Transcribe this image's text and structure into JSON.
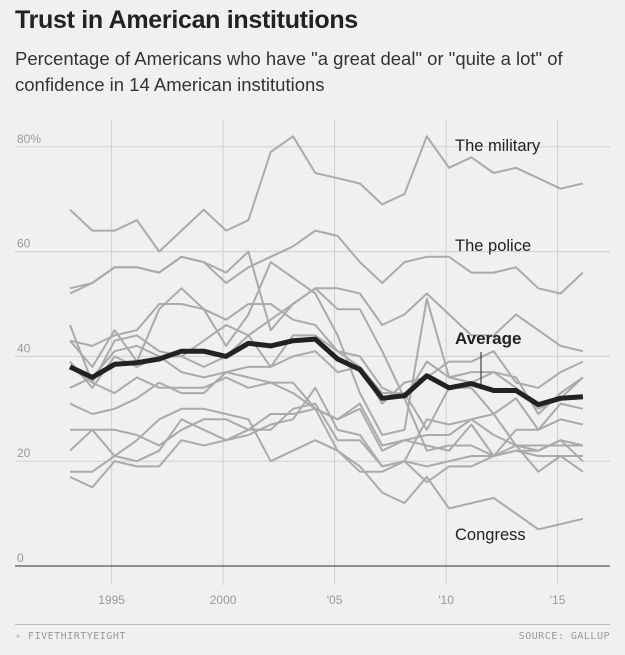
{
  "header": {
    "title": "Trust in American institutions",
    "subtitle": "Percentage of Americans who have \"a great deal\" or \"quite a lot\" of confidence in 14 American institutions"
  },
  "footer": {
    "logo": "FIVETHIRTYEIGHT",
    "source": "SOURCE: GALLUP"
  },
  "chart_data": {
    "type": "line",
    "title": "Trust in American institutions",
    "ylim": [
      0,
      80
    ],
    "yticks": [
      {
        "v": 0,
        "label": "0"
      },
      {
        "v": 20,
        "label": "20"
      },
      {
        "v": 40,
        "label": "40"
      },
      {
        "v": 60,
        "label": "60"
      },
      {
        "v": 80,
        "label": "80%"
      }
    ],
    "xticks": [
      {
        "v": 1995,
        "label": "1995"
      },
      {
        "v": 2000,
        "label": "2000"
      },
      {
        "v": 2005,
        "label": "'05"
      },
      {
        "v": 2010,
        "label": "'10"
      },
      {
        "v": 2015,
        "label": "'15"
      }
    ],
    "grid": true,
    "x": [
      1993,
      1994,
      1995,
      1996,
      1997,
      1998,
      1999,
      2000,
      2001,
      2002,
      2003,
      2004,
      2005,
      2006,
      2007,
      2008,
      2009,
      2010,
      2011,
      2012,
      2013,
      2014,
      2015,
      2016
    ],
    "series": [
      {
        "name": "The military",
        "labeled": true,
        "values": [
          68,
          64,
          64,
          66,
          60,
          64,
          68,
          64,
          66,
          79,
          82,
          75,
          74,
          73,
          69,
          71,
          82,
          76,
          78,
          75,
          76,
          74,
          72,
          73
        ]
      },
      {
        "name": "The police",
        "labeled": true,
        "values": [
          52,
          54,
          57,
          57,
          56,
          59,
          58,
          54,
          57,
          59,
          61,
          64,
          63,
          58,
          54,
          58,
          59,
          59,
          56,
          56,
          57,
          53,
          52,
          56
        ]
      },
      {
        "name": "Congress",
        "labeled": true,
        "values": [
          18,
          18,
          21,
          20,
          22,
          28,
          26,
          24,
          26,
          29,
          29,
          30,
          22,
          19,
          14,
          12,
          17,
          11,
          12,
          13,
          10,
          7,
          8,
          9
        ]
      },
      {
        "values": [
          53,
          54,
          57,
          57,
          56,
          59,
          58,
          56,
          60,
          45,
          50,
          53,
          53,
          52,
          46,
          48,
          52,
          48,
          44,
          44,
          48,
          45,
          42,
          41
        ]
      },
      {
        "values": [
          43,
          42,
          44,
          45,
          50,
          50,
          49,
          47,
          50,
          50,
          47,
          46,
          41,
          40,
          34,
          32,
          39,
          36,
          37,
          37,
          34,
          30,
          32,
          36
        ]
      },
      {
        "values": [
          43,
          38,
          45,
          39,
          49,
          53,
          49,
          42,
          48,
          58,
          55,
          52,
          44,
          33,
          25,
          26,
          51,
          36,
          35,
          37,
          36,
          29,
          33,
          36
        ]
      },
      {
        "values": [
          38,
          35,
          43,
          44,
          41,
          40,
          43,
          46,
          44,
          47,
          50,
          53,
          49,
          49,
          41,
          32,
          22,
          23,
          23,
          21,
          26,
          26,
          28,
          27
        ]
      },
      {
        "values": [
          39,
          34,
          40,
          38,
          40,
          37,
          36,
          37,
          38,
          38,
          40,
          41,
          37,
          38,
          33,
          33,
          26,
          34,
          34,
          29,
          32,
          26,
          31,
          30
        ]
      },
      {
        "values": [
          34,
          36,
          41,
          42,
          40,
          40,
          38,
          40,
          44,
          38,
          44,
          44,
          41,
          38,
          31,
          35,
          36,
          39,
          39,
          41,
          35,
          34,
          37,
          39
        ]
      },
      {
        "values": [
          31,
          29,
          30,
          32,
          35,
          33,
          33,
          37,
          36,
          35,
          33,
          30,
          28,
          30,
          22,
          24,
          25,
          25,
          28,
          25,
          23,
          22,
          24,
          20
        ]
      },
      {
        "values": [
          46,
          35,
          33,
          36,
          34,
          34,
          34,
          36,
          34,
          35,
          35,
          30,
          28,
          31,
          23,
          24,
          23,
          22,
          27,
          21,
          23,
          18,
          21,
          21
        ]
      },
      {
        "values": [
          22,
          26,
          21,
          24,
          28,
          30,
          30,
          29,
          28,
          20,
          22,
          24,
          22,
          18,
          18,
          20,
          16,
          19,
          19,
          21,
          22,
          21,
          21,
          18
        ]
      },
      {
        "values": [
          26,
          26,
          26,
          25,
          23,
          26,
          28,
          28,
          26,
          26,
          30,
          31,
          24,
          24,
          19,
          20,
          19,
          20,
          21,
          21,
          22,
          22,
          24,
          23
        ]
      },
      {
        "values": [
          17,
          15,
          20,
          19,
          19,
          24,
          23,
          24,
          25,
          27,
          28,
          34,
          26,
          25,
          19,
          20,
          28,
          27,
          28,
          29,
          23,
          23,
          23,
          23
        ]
      }
    ],
    "average": {
      "name": "Average",
      "values": [
        38,
        36,
        38.5,
        38.8,
        39.5,
        41,
        41,
        40,
        42.5,
        42,
        43,
        43.3,
        39.5,
        37.5,
        32,
        32.5,
        36.3,
        34,
        34.8,
        33.5,
        33.5,
        30.8,
        32,
        32.3
      ]
    },
    "colors": {
      "series": "#aaaaaa",
      "average": "#222222",
      "grid": "#cfcfcf",
      "background": "#f0f0f0"
    }
  }
}
